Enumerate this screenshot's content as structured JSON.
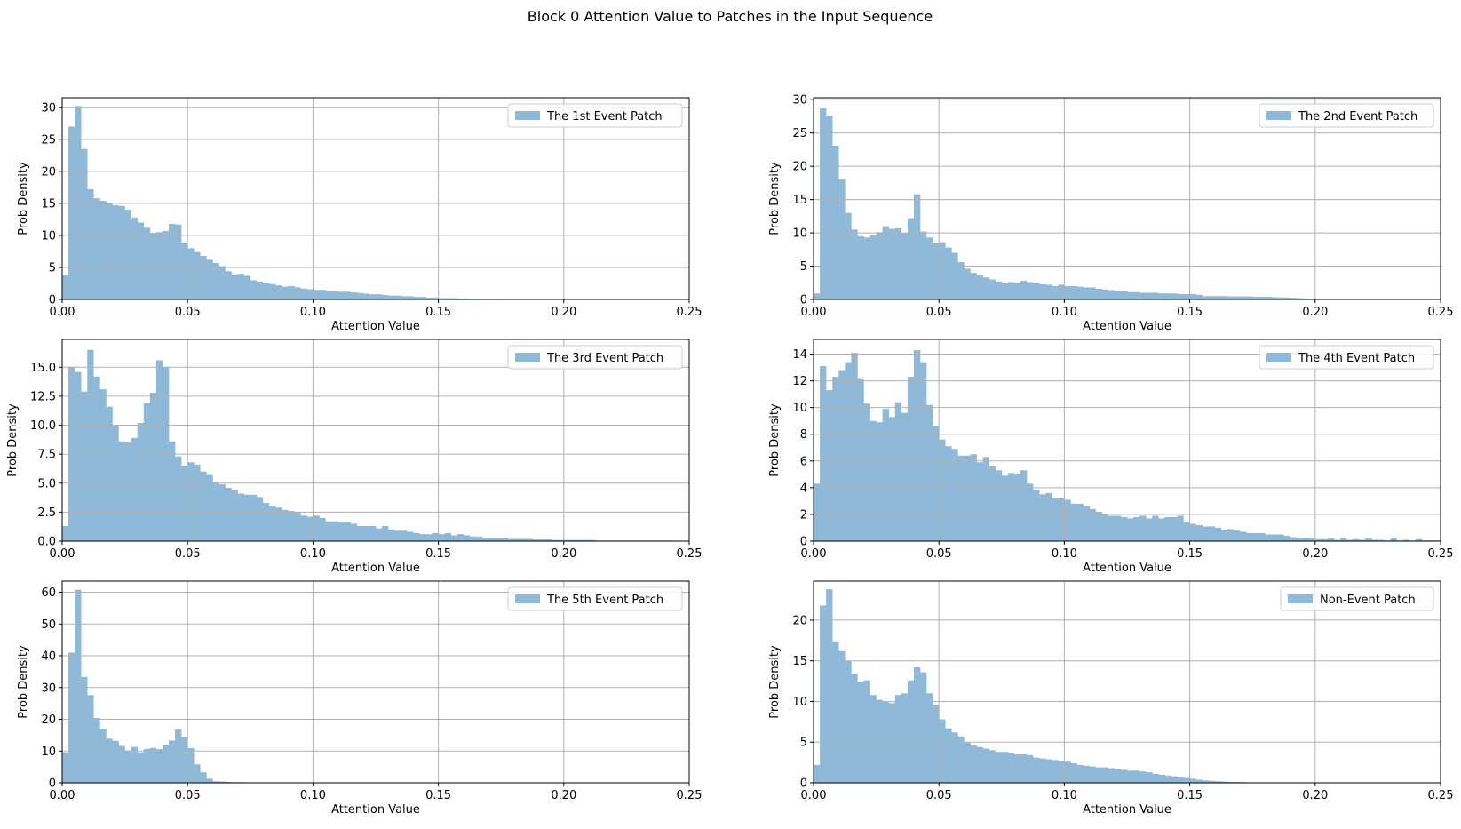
{
  "figure": {
    "title": "Block 0 Attention Value to Patches in the Input Sequence"
  },
  "colors": {
    "bar": "#8fb9d8",
    "grid": "#b0b0b0",
    "axis": "#000000",
    "legend_border": "#cccccc"
  },
  "chart_data": [
    {
      "type": "bar",
      "legend": "The 1st Event Patch",
      "xlabel": "Attention Value",
      "ylabel": "Prob Density",
      "xlim": [
        0,
        0.25
      ],
      "ylim": [
        0,
        31.5
      ],
      "xticks": [
        "0.00",
        "0.05",
        "0.10",
        "0.15",
        "0.20",
        "0.25"
      ],
      "yticks": [
        0,
        5,
        10,
        15,
        20,
        25,
        30
      ],
      "ytick_labels": [
        "0",
        "5",
        "10",
        "15",
        "20",
        "25",
        "30"
      ],
      "legend_position": "upper right",
      "grid": true,
      "bin_width": 0.0025,
      "values": [
        3.8,
        27,
        30.2,
        23.5,
        17.2,
        15.8,
        15.4,
        15.0,
        14.7,
        14.6,
        14.0,
        12.8,
        12.0,
        11.2,
        10.4,
        10.5,
        10.7,
        11.8,
        11.7,
        8.9,
        8.0,
        7.4,
        6.8,
        6.2,
        5.7,
        5.2,
        4.4,
        3.9,
        4.0,
        3.7,
        3.0,
        2.8,
        2.6,
        2.4,
        2.2,
        2.0,
        2.1,
        1.9,
        1.7,
        1.6,
        1.5,
        1.5,
        1.3,
        1.3,
        1.2,
        1.2,
        1.1,
        1.0,
        0.9,
        0.8,
        0.8,
        0.7,
        0.6,
        0.6,
        0.5,
        0.5,
        0.4,
        0.4,
        0.3,
        0.3,
        0.2,
        0.2,
        0.2,
        0.15,
        0.15,
        0.1,
        0.1,
        0.1,
        0.1,
        0.08,
        0.05,
        0.05,
        0.05,
        0.05,
        0.05,
        0.05,
        0.05,
        0.05,
        0.05,
        0.05,
        0.05
      ]
    },
    {
      "type": "bar",
      "legend": "The 2nd Event Patch",
      "xlabel": "Attention Value",
      "ylabel": "Prob Density",
      "xlim": [
        0,
        0.25
      ],
      "ylim": [
        0,
        30.3
      ],
      "xticks": [
        "0.00",
        "0.05",
        "0.10",
        "0.15",
        "0.20",
        "0.25"
      ],
      "yticks": [
        0,
        5,
        10,
        15,
        20,
        25,
        30
      ],
      "ytick_labels": [
        "0",
        "5",
        "10",
        "15",
        "20",
        "25",
        "30"
      ],
      "legend_position": "upper right",
      "grid": true,
      "bin_width": 0.0025,
      "values": [
        0.9,
        28.7,
        27.6,
        23.1,
        18.0,
        13.0,
        10.5,
        9.5,
        9.3,
        9.6,
        10.1,
        11.0,
        10.6,
        10.7,
        10.0,
        12.2,
        15.8,
        10.2,
        9.3,
        8.5,
        8.6,
        7.8,
        7.0,
        5.6,
        4.6,
        4.0,
        3.6,
        3.3,
        3.0,
        2.7,
        2.4,
        2.6,
        2.5,
        2.8,
        2.6,
        2.5,
        2.3,
        2.2,
        2.0,
        2.2,
        2.0,
        2.0,
        1.9,
        1.8,
        1.8,
        1.6,
        1.5,
        1.4,
        1.3,
        1.2,
        1.1,
        1.1,
        1.0,
        1.0,
        1.0,
        0.9,
        0.9,
        0.9,
        0.8,
        0.8,
        0.8,
        0.7,
        0.5,
        0.5,
        0.5,
        0.5,
        0.45,
        0.45,
        0.45,
        0.45,
        0.4,
        0.4,
        0.4,
        0.35,
        0.3,
        0.3,
        0.25,
        0.2,
        0.15,
        0.1,
        0.05,
        0.05,
        0.05,
        0.05,
        0.05,
        0.05,
        0.05,
        0.05,
        0.05,
        0.05
      ]
    },
    {
      "type": "bar",
      "legend": "The 3rd Event Patch",
      "xlabel": "Attention Value",
      "ylabel": "Prob Density",
      "xlim": [
        0,
        0.25
      ],
      "ylim": [
        0,
        17.4
      ],
      "xticks": [
        "0.00",
        "0.05",
        "0.10",
        "0.15",
        "0.20",
        "0.25"
      ],
      "yticks": [
        0,
        2.5,
        5,
        7.5,
        10,
        12.5,
        15
      ],
      "ytick_labels": [
        "0.0",
        "2.5",
        "5.0",
        "7.5",
        "10.0",
        "12.5",
        "15.0"
      ],
      "legend_position": "upper right",
      "grid": true,
      "bin_width": 0.0025,
      "values": [
        1.3,
        15.0,
        14.6,
        12.9,
        16.5,
        14.2,
        13.1,
        11.6,
        9.9,
        8.6,
        8.5,
        8.9,
        10.2,
        11.9,
        12.8,
        15.6,
        15.0,
        8.6,
        7.3,
        6.5,
        6.8,
        6.6,
        6.0,
        5.7,
        5.1,
        4.9,
        4.6,
        4.4,
        4.1,
        4.0,
        4.0,
        3.8,
        3.3,
        3.0,
        2.9,
        2.7,
        2.6,
        2.5,
        2.2,
        2.1,
        2.2,
        2.0,
        1.7,
        1.7,
        1.6,
        1.6,
        1.5,
        1.3,
        1.3,
        1.3,
        1.1,
        1.3,
        1.0,
        0.9,
        0.9,
        0.8,
        0.7,
        0.6,
        0.6,
        0.7,
        0.6,
        0.7,
        0.5,
        0.6,
        0.5,
        0.4,
        0.4,
        0.3,
        0.3,
        0.3,
        0.3,
        0.2,
        0.2,
        0.2,
        0.2,
        0.15,
        0.15,
        0.15,
        0.1,
        0.1,
        0.1,
        0.1,
        0.1,
        0.1,
        0.1,
        0.05,
        0.05,
        0.05,
        0.05,
        0.05,
        0.05,
        0.05,
        0.05,
        0.05,
        0.05,
        0.05,
        0.05
      ]
    },
    {
      "type": "bar",
      "legend": "The 4th Event Patch",
      "xlabel": "Attention Value",
      "ylabel": "Prob Density",
      "xlim": [
        0,
        0.25
      ],
      "ylim": [
        0,
        15.1
      ],
      "xticks": [
        "0.00",
        "0.05",
        "0.10",
        "0.15",
        "0.20",
        "0.25"
      ],
      "yticks": [
        0,
        2,
        4,
        6,
        8,
        10,
        12,
        14
      ],
      "ytick_labels": [
        "0",
        "2",
        "4",
        "6",
        "8",
        "10",
        "12",
        "14"
      ],
      "legend_position": "upper right",
      "grid": true,
      "bin_width": 0.0025,
      "values": [
        4.3,
        13.1,
        11.3,
        12.3,
        12.8,
        13.4,
        14.1,
        12.2,
        10.3,
        9.0,
        8.9,
        9.9,
        9.3,
        10.4,
        9.6,
        12.3,
        14.3,
        13.4,
        10.2,
        8.6,
        7.6,
        7.1,
        6.9,
        6.4,
        6.4,
        6.5,
        5.9,
        6.3,
        5.6,
        5.3,
        4.9,
        5.1,
        5.0,
        5.3,
        4.3,
        3.8,
        3.5,
        3.6,
        3.2,
        3.2,
        3.1,
        2.8,
        2.8,
        2.6,
        2.4,
        2.2,
        2.0,
        1.9,
        1.9,
        1.8,
        1.7,
        1.8,
        1.9,
        1.7,
        1.9,
        1.7,
        1.8,
        1.8,
        1.9,
        1.4,
        1.3,
        1.2,
        1.1,
        1.1,
        1.0,
        0.8,
        0.9,
        0.8,
        0.7,
        0.6,
        0.6,
        0.6,
        0.5,
        0.5,
        0.5,
        0.4,
        0.3,
        0.2,
        0.25,
        0.2,
        0.15,
        0.15,
        0.2,
        0.1,
        0.2,
        0.1,
        0.15,
        0.1,
        0.2,
        0.1,
        0.1,
        0.05,
        0.2,
        0.05,
        0.1,
        0.05,
        0.15,
        0.05,
        0.05,
        0.05
      ]
    },
    {
      "type": "bar",
      "legend": "The 5th Event Patch",
      "xlabel": "Attention Value",
      "ylabel": "Prob Density",
      "xlim": [
        0,
        0.25
      ],
      "ylim": [
        0,
        63.5
      ],
      "xticks": [
        "0.00",
        "0.05",
        "0.10",
        "0.15",
        "0.20",
        "0.25"
      ],
      "yticks": [
        0,
        10,
        20,
        30,
        40,
        50,
        60
      ],
      "ytick_labels": [
        "0",
        "10",
        "20",
        "30",
        "40",
        "50",
        "60"
      ],
      "legend_position": "upper right",
      "grid": true,
      "bin_width": 0.0025,
      "values": [
        9.6,
        41.0,
        60.8,
        33.3,
        27.6,
        20.4,
        17.1,
        13.9,
        13.2,
        11.6,
        10.2,
        11.3,
        9.6,
        10.7,
        11.0,
        10.6,
        12.0,
        13.3,
        16.8,
        14.4,
        10.9,
        5.8,
        3.3,
        1.3,
        0.5,
        0.4,
        0.3,
        0.2,
        0.2,
        0.1,
        0.1,
        0.05,
        0.05,
        0.05,
        0.05
      ]
    },
    {
      "type": "bar",
      "legend": "Non-Event Patch",
      "xlabel": "Attention Value",
      "ylabel": "Prob Density",
      "xlim": [
        0,
        0.25
      ],
      "ylim": [
        0,
        24.8
      ],
      "xticks": [
        "0.00",
        "0.05",
        "0.10",
        "0.15",
        "0.20",
        "0.25"
      ],
      "yticks": [
        0,
        5,
        10,
        15,
        20
      ],
      "ytick_labels": [
        "0",
        "5",
        "10",
        "15",
        "20"
      ],
      "legend_position": "upper right",
      "grid": true,
      "bin_width": 0.0025,
      "values": [
        2.2,
        21.8,
        23.8,
        17.4,
        16.2,
        15.0,
        13.4,
        12.4,
        12.6,
        10.8,
        10.2,
        10.0,
        9.8,
        10.8,
        11.0,
        12.6,
        14.2,
        13.6,
        11.0,
        9.6,
        7.8,
        6.7,
        6.2,
        5.7,
        5.0,
        4.6,
        4.4,
        4.2,
        4.0,
        3.8,
        3.8,
        3.7,
        3.5,
        3.5,
        3.4,
        3.1,
        3.0,
        2.9,
        2.8,
        2.7,
        2.6,
        2.4,
        2.2,
        2.1,
        2.0,
        1.9,
        1.9,
        1.8,
        1.7,
        1.6,
        1.5,
        1.5,
        1.4,
        1.3,
        1.1,
        1.0,
        0.9,
        0.8,
        0.7,
        0.6,
        0.5,
        0.4,
        0.3,
        0.25,
        0.2,
        0.15,
        0.12,
        0.1,
        0.08,
        0.05,
        0.05,
        0.05,
        0.05,
        0.05,
        0.05,
        0.05,
        0.05,
        0.05,
        0.05,
        0.05
      ]
    }
  ]
}
